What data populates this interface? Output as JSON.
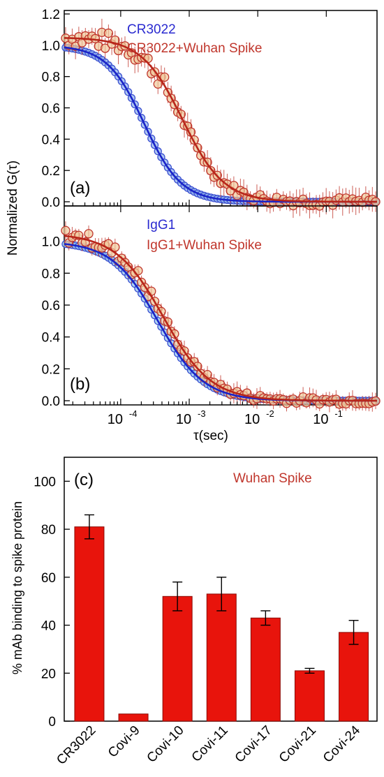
{
  "chart_data": [
    {
      "panel": "(a)",
      "type": "scatter",
      "xscale": "log",
      "xlim": [
        1.5e-05,
        0.55
      ],
      "ylim": [
        0,
        1.2
      ],
      "xticks": [
        0.0001,
        0.001,
        0.01,
        0.1
      ],
      "xtick_labels": [
        {
          "base": "10",
          "exp": "-4"
        },
        {
          "base": "10",
          "exp": "-3"
        },
        {
          "base": "10",
          "exp": "-2"
        },
        {
          "base": "10",
          "exp": "-1"
        }
      ],
      "yticks": [
        0,
        0.2,
        0.4,
        0.6,
        0.8,
        1.0,
        1.2
      ],
      "ytick_labels": [
        "0.0",
        "0.2",
        "0.4",
        "0.6",
        "0.8",
        "1.0",
        "1.2"
      ],
      "series": [
        {
          "name": "CR3022",
          "marker": "#3a4fd0",
          "fill": "#8fb2ec",
          "line": "#1a23c8",
          "tau": 0.00022,
          "n": 1.6,
          "amp": 1.0,
          "noise": 0.0
        },
        {
          "name": "CR3022+Wuhan Spike",
          "marker": "#c0362c",
          "fill": "#f0c89a",
          "line": "#b8261a",
          "tau": 0.0008,
          "n": 1.45,
          "amp": 1.05,
          "noise": 0.04
        }
      ]
    },
    {
      "panel": "(b)",
      "type": "scatter",
      "xscale": "log",
      "xlim": [
        1.5e-05,
        0.55
      ],
      "ylim": [
        0,
        1.2
      ],
      "xticks": [
        0.0001,
        0.001,
        0.01,
        0.1
      ],
      "xtick_labels": [
        {
          "base": "10",
          "exp": "-4"
        },
        {
          "base": "10",
          "exp": "-3"
        },
        {
          "base": "10",
          "exp": "-2"
        },
        {
          "base": "10",
          "exp": "-1"
        }
      ],
      "yticks": [
        0,
        0.2,
        0.4,
        0.6,
        0.8,
        1.0
      ],
      "ytick_labels": [
        "0.0",
        "0.2",
        "0.4",
        "0.6",
        "0.8",
        "1.0"
      ],
      "series": [
        {
          "name": "IgG1",
          "marker": "#3a4fd0",
          "fill": "#8fc4ec",
          "line": "#1a23c8",
          "tau": 0.00035,
          "n": 1.3,
          "amp": 1.0,
          "noise": 0.0
        },
        {
          "name": "IgG1+Wuhan Spike",
          "marker": "#c0362c",
          "fill": "#f0c89a",
          "line": "#b8261a",
          "tau": 0.00042,
          "n": 1.25,
          "amp": 1.05,
          "noise": 0.03
        }
      ]
    },
    {
      "panel": "(c)",
      "type": "bar",
      "categories": [
        "CR3022",
        "Covi-9",
        "Covi-10",
        "Covi-11",
        "Covi-17",
        "Covi-21",
        "Covi-24"
      ],
      "values": [
        81,
        3,
        52,
        53,
        43,
        21,
        37
      ],
      "errors": [
        5,
        0,
        6,
        7,
        3,
        1,
        5
      ],
      "ylim": [
        0,
        110
      ],
      "yticks": [
        0,
        20,
        40,
        60,
        80,
        100
      ],
      "ytick_labels": [
        "0",
        "20",
        "40",
        "60",
        "80",
        "100"
      ],
      "legend": "Wuhan Spike",
      "bar_color": "#e8140c"
    }
  ],
  "labels": {
    "ylabel_top": "Normalized G(τ)",
    "xlabel_top": "τ(sec)",
    "ylabel_bottom": "% mAb binding to spike protein"
  },
  "colors": {
    "blue_text": "#2a2ad0",
    "red_text": "#c0362c",
    "bar": "#e8140c"
  }
}
